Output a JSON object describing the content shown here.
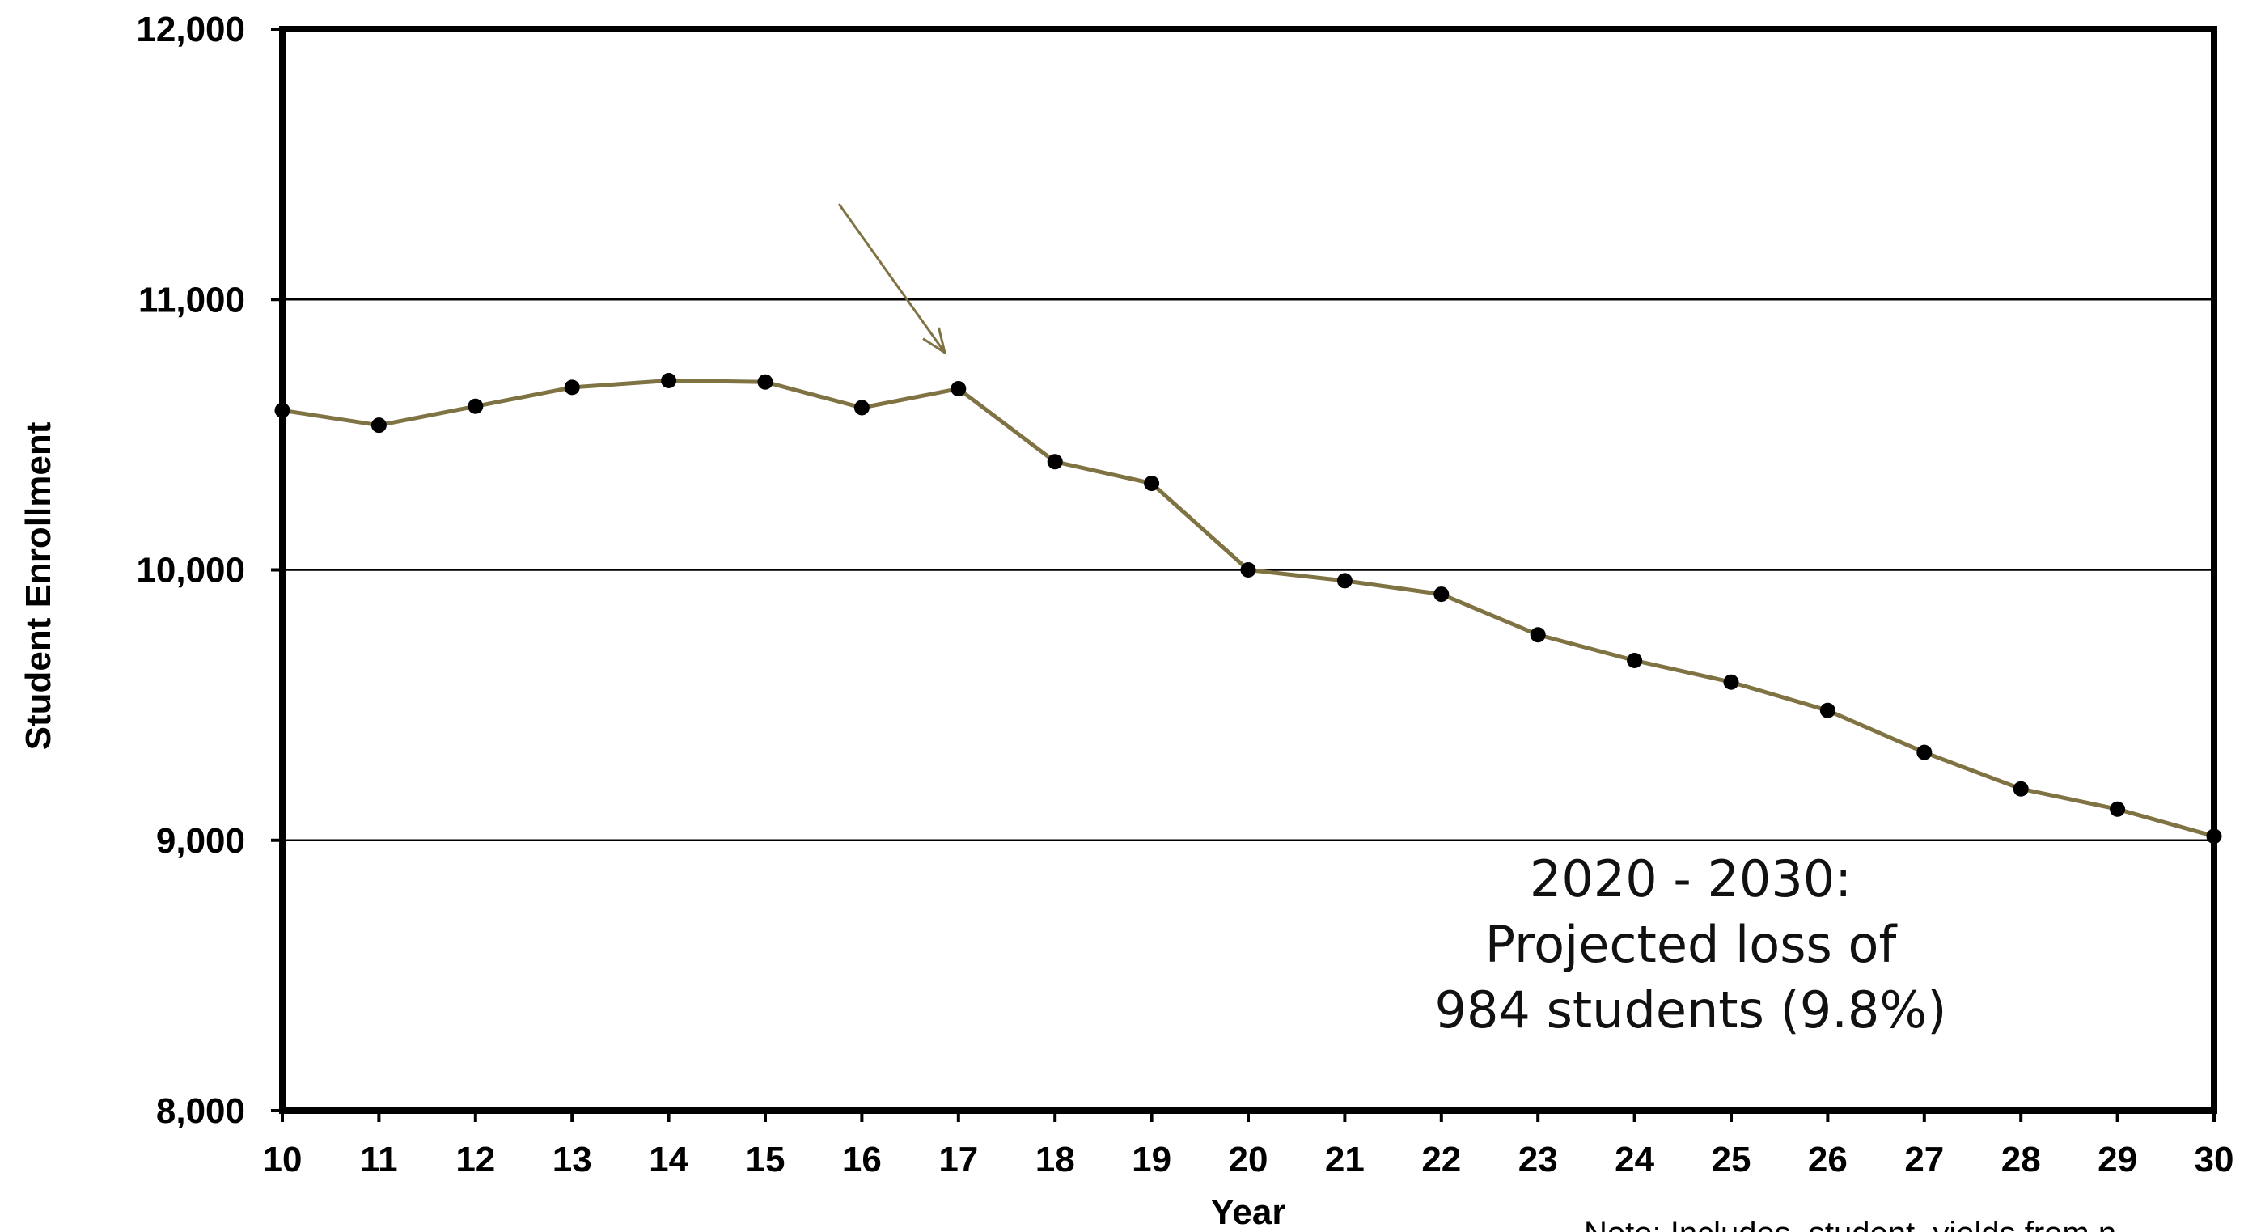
{
  "chart_data": {
    "type": "line",
    "title": "",
    "xlabel": "Year",
    "ylabel": "Student Enrollment",
    "x": [
      "10",
      "11",
      "12",
      "13",
      "14",
      "15",
      "16",
      "17",
      "18",
      "19",
      "20",
      "21",
      "22",
      "23",
      "24",
      "25",
      "26",
      "27",
      "28",
      "29",
      "30"
    ],
    "series": [
      {
        "values": [
          10590,
          10535,
          10605,
          10675,
          10700,
          10695,
          10600,
          10670,
          10400,
          10320,
          10000,
          9960,
          9910,
          9760,
          9665,
          9585,
          9480,
          9325,
          9190,
          9115,
          9015
        ]
      }
    ],
    "ylim": [
      8000,
      12000
    ],
    "yticks": [
      "8,000",
      "9,000",
      "10,000",
      "11,000",
      "12,000"
    ],
    "ytick_values": [
      8000,
      9000,
      10000,
      11000,
      12000
    ],
    "grid": true,
    "legend": "none",
    "annotation": {
      "lines": [
        "2020 - 2030:",
        "Projected loss of",
        "984 students (9.8%)"
      ]
    },
    "note": "Note: Includes  student  yields from n",
    "colors": {
      "line": "#7f7344",
      "marker": "#000000",
      "arrow": "#7f7344",
      "frame": "#000000"
    }
  }
}
